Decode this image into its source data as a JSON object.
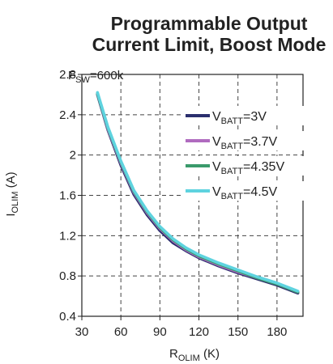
{
  "chart_data": {
    "type": "line",
    "title": [
      "Programmable Output",
      "Current Limit, Boost Mode"
    ],
    "annotation": {
      "main": "F",
      "sub": "SW",
      "rest": "=600k"
    },
    "xlabel": {
      "main": "R",
      "sub": "OLIM",
      "rest": " (K)"
    },
    "ylabel": {
      "main": "I",
      "sub": "OLIM",
      "rest": " (A)"
    },
    "xlim": [
      30,
      200
    ],
    "ylim": [
      0.4,
      2.8
    ],
    "xticks": [
      30,
      60,
      90,
      120,
      150,
      180
    ],
    "yticks": [
      0.4,
      0.8,
      1.2,
      1.6,
      2,
      2.4,
      2.8
    ],
    "xtick_labels": [
      "30",
      "60",
      "90",
      "120",
      "150",
      "180"
    ],
    "ytick_labels": [
      "0.4",
      "0.8",
      "1.2",
      "1.6",
      "2",
      "2.4",
      "2.8"
    ],
    "grid": true,
    "legend_position": "right",
    "series": [
      {
        "name": "V_BATT=3V",
        "label_main": "V",
        "label_sub": "BATT",
        "label_rest": "=3V",
        "color": "#2b2f6e",
        "x": [
          42,
          50,
          60,
          70,
          80,
          90,
          100,
          110,
          120,
          135,
          150,
          165,
          180,
          196
        ],
        "y": [
          2.6,
          2.25,
          1.9,
          1.61,
          1.41,
          1.25,
          1.13,
          1.05,
          0.98,
          0.9,
          0.83,
          0.77,
          0.71,
          0.63
        ]
      },
      {
        "name": "V_BATT=3.7V",
        "label_main": "V",
        "label_sub": "BATT",
        "label_rest": "=3.7V",
        "color": "#b06bbf",
        "x": [
          42,
          50,
          60,
          70,
          80,
          90,
          100,
          110,
          120,
          135,
          150,
          165,
          180,
          196
        ],
        "y": [
          2.61,
          2.26,
          1.92,
          1.63,
          1.43,
          1.27,
          1.15,
          1.06,
          0.99,
          0.91,
          0.84,
          0.78,
          0.72,
          0.64
        ]
      },
      {
        "name": "V_BATT=4.35V",
        "label_main": "V",
        "label_sub": "BATT",
        "label_rest": "=4.35V",
        "color": "#3a9a6b",
        "x": [
          42,
          50,
          60,
          70,
          80,
          90,
          100,
          110,
          120,
          135,
          150,
          165,
          180,
          196
        ],
        "y": [
          2.61,
          2.27,
          1.93,
          1.64,
          1.44,
          1.28,
          1.16,
          1.07,
          1.0,
          0.92,
          0.85,
          0.78,
          0.72,
          0.64
        ]
      },
      {
        "name": "V_BATT=4.5V",
        "label_main": "V",
        "label_sub": "BATT",
        "label_rest": "=4.5V",
        "color": "#5ed3df",
        "x": [
          42,
          50,
          60,
          70,
          80,
          90,
          100,
          110,
          120,
          135,
          150,
          165,
          180,
          196
        ],
        "y": [
          2.62,
          2.28,
          1.94,
          1.65,
          1.45,
          1.29,
          1.17,
          1.08,
          1.01,
          0.93,
          0.86,
          0.79,
          0.73,
          0.65
        ]
      }
    ]
  }
}
